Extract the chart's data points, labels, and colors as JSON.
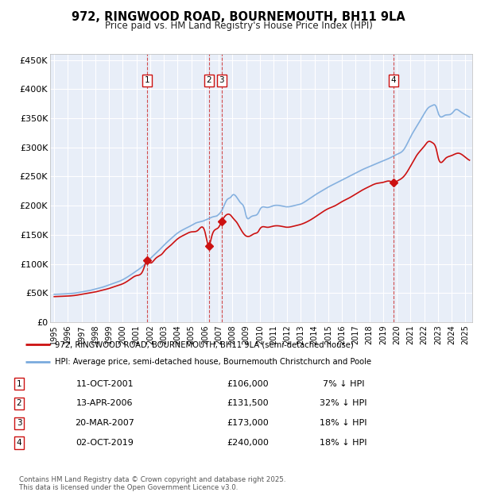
{
  "title_line1": "972, RINGWOOD ROAD, BOURNEMOUTH, BH11 9LA",
  "title_line2": "Price paid vs. HM Land Registry's House Price Index (HPI)",
  "legend_line1": "972, RINGWOOD ROAD, BOURNEMOUTH, BH11 9LA (semi-detached house)",
  "legend_line2": "HPI: Average price, semi-detached house, Bournemouth Christchurch and Poole",
  "footer1": "Contains HM Land Registry data © Crown copyright and database right 2025.",
  "footer2": "This data is licensed under the Open Government Licence v3.0.",
  "transactions": [
    {
      "num": 1,
      "date": "11-OCT-2001",
      "price": 106000,
      "hpi_pct": "7% ↓ HPI",
      "date_x": 2001.78
    },
    {
      "num": 2,
      "date": "13-APR-2006",
      "price": 131500,
      "hpi_pct": "32% ↓ HPI",
      "date_x": 2006.28
    },
    {
      "num": 3,
      "date": "20-MAR-2007",
      "price": 173000,
      "hpi_pct": "18% ↓ HPI",
      "date_x": 2007.22
    },
    {
      "num": 4,
      "date": "02-OCT-2019",
      "price": 240000,
      "hpi_pct": "18% ↓ HPI",
      "date_x": 2019.75
    }
  ],
  "ylim": [
    0,
    460000
  ],
  "xlim": [
    1994.7,
    2025.5
  ],
  "yticks": [
    0,
    50000,
    100000,
    150000,
    200000,
    250000,
    300000,
    350000,
    400000,
    450000
  ],
  "ytick_labels": [
    "£0",
    "£50K",
    "£100K",
    "£150K",
    "£200K",
    "£250K",
    "£300K",
    "£350K",
    "£400K",
    "£450K"
  ],
  "plot_bg": "#e8eef8",
  "grid_color": "#ffffff",
  "hpi_color": "#7aaadd",
  "price_color": "#cc1111",
  "marker_box_color": "#cc1111",
  "dashed_line_color": "#cc2222",
  "hpi_curve": {
    "x": [
      1995.0,
      1995.5,
      1996.0,
      1996.5,
      1997.0,
      1997.5,
      1998.0,
      1998.5,
      1999.0,
      1999.5,
      2000.0,
      2000.5,
      2001.0,
      2001.5,
      2002.0,
      2002.5,
      2003.0,
      2003.5,
      2004.0,
      2004.5,
      2005.0,
      2005.3,
      2005.6,
      2005.9,
      2006.0,
      2006.3,
      2006.6,
      2006.9,
      2007.0,
      2007.3,
      2007.6,
      2007.9,
      2008.0,
      2008.3,
      2008.6,
      2008.9,
      2009.0,
      2009.3,
      2009.6,
      2009.9,
      2010.0,
      2010.5,
      2011.0,
      2011.5,
      2012.0,
      2012.5,
      2013.0,
      2013.5,
      2014.0,
      2014.5,
      2015.0,
      2015.5,
      2016.0,
      2016.5,
      2017.0,
      2017.5,
      2018.0,
      2018.5,
      2019.0,
      2019.5,
      2020.0,
      2020.5,
      2021.0,
      2021.5,
      2022.0,
      2022.3,
      2022.6,
      2022.9,
      2023.0,
      2023.5,
      2024.0,
      2024.3,
      2024.6,
      2025.0,
      2025.3
    ],
    "y": [
      48000,
      48500,
      49000,
      50000,
      52000,
      54000,
      57000,
      60000,
      64000,
      68000,
      73000,
      80000,
      88000,
      97000,
      109000,
      120000,
      132000,
      143000,
      153000,
      160000,
      166000,
      170000,
      172000,
      174000,
      175000,
      178000,
      181000,
      183000,
      185000,
      195000,
      210000,
      215000,
      218000,
      215000,
      205000,
      193000,
      183000,
      180000,
      183000,
      188000,
      193000,
      197000,
      200000,
      200000,
      198000,
      200000,
      203000,
      210000,
      218000,
      225000,
      232000,
      238000,
      244000,
      250000,
      256000,
      262000,
      267000,
      272000,
      277000,
      282000,
      288000,
      296000,
      318000,
      338000,
      358000,
      368000,
      372000,
      368000,
      360000,
      355000,
      358000,
      365000,
      362000,
      356000,
      352000
    ]
  },
  "price_curve": {
    "x": [
      1995.0,
      1995.5,
      1996.0,
      1996.5,
      1997.0,
      1997.5,
      1998.0,
      1998.5,
      1999.0,
      1999.5,
      2000.0,
      2000.5,
      2001.0,
      2001.5,
      2001.78,
      2002.0,
      2002.3,
      2002.6,
      2002.9,
      2003.0,
      2003.5,
      2004.0,
      2004.5,
      2005.0,
      2005.5,
      2006.0,
      2006.28,
      2006.5,
      2007.0,
      2007.22,
      2007.5,
      2007.9,
      2008.0,
      2008.3,
      2008.6,
      2009.0,
      2009.3,
      2009.6,
      2009.9,
      2010.0,
      2010.5,
      2011.0,
      2011.5,
      2012.0,
      2012.5,
      2013.0,
      2013.5,
      2014.0,
      2014.5,
      2015.0,
      2015.5,
      2016.0,
      2016.5,
      2017.0,
      2017.5,
      2018.0,
      2018.5,
      2019.0,
      2019.5,
      2019.75,
      2020.0,
      2020.5,
      2021.0,
      2021.5,
      2022.0,
      2022.3,
      2022.6,
      2022.9,
      2023.0,
      2023.5,
      2024.0,
      2024.5,
      2025.0,
      2025.3
    ],
    "y": [
      44000,
      44500,
      45000,
      46000,
      48000,
      50000,
      52000,
      55000,
      58000,
      62000,
      66000,
      73000,
      80000,
      90000,
      106000,
      102000,
      107000,
      113000,
      118000,
      121000,
      132000,
      143000,
      150000,
      155000,
      158000,
      155000,
      131500,
      148000,
      163000,
      173000,
      183000,
      183000,
      180000,
      172000,
      160000,
      148000,
      148000,
      152000,
      156000,
      160000,
      163000,
      165000,
      165000,
      163000,
      165000,
      168000,
      173000,
      180000,
      188000,
      195000,
      200000,
      207000,
      213000,
      220000,
      227000,
      233000,
      238000,
      240000,
      242000,
      240000,
      242000,
      250000,
      268000,
      288000,
      302000,
      310000,
      308000,
      295000,
      284000,
      280000,
      286000,
      290000,
      283000,
      278000
    ]
  }
}
